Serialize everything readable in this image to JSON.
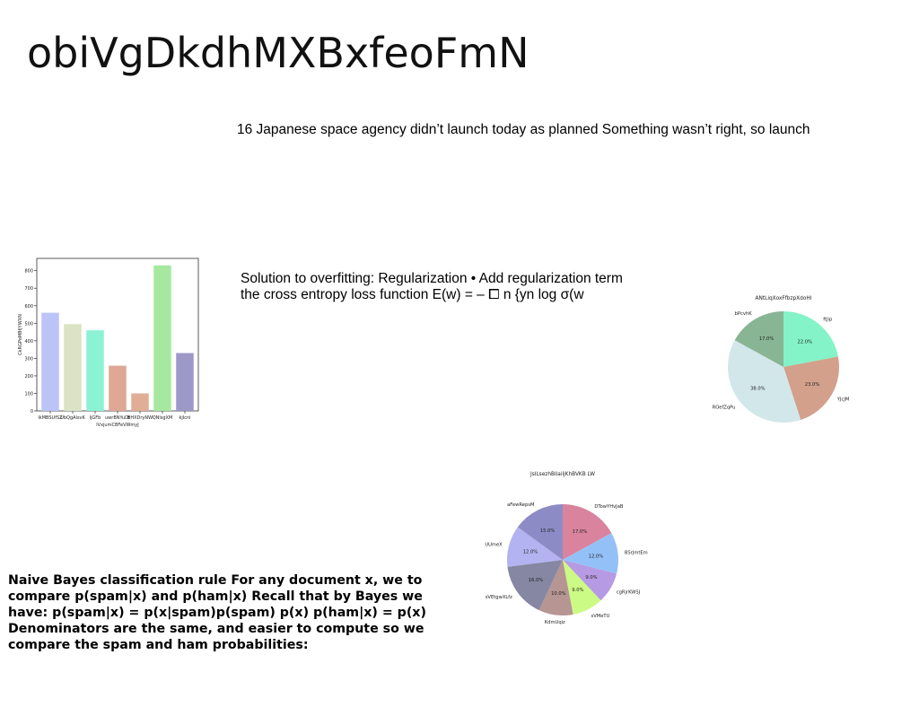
{
  "slide": {
    "title": "obiVgDkdhMXBxfeoFmN",
    "text1": "16 Japanese space agency didn’t launch today as planned Something wasn’t right, so launch",
    "text2_line1": "Solution to overfitting: Regularization • Add regularization term",
    "text2_line2": "the cross entropy loss function E(w) = – ⧠ n {yn log σ(w",
    "text3": "Naive Bayes classification rule For any document x, we to compare p(spam|x) and p(ham|x) Recall that by Bayes we have: p(spam|x) = p(x|spam)p(spam) p(x) p(ham|x) = p(x) Denominators are the same, and easier to compute so we compare the spam and ham probabilities:"
  },
  "chart_data": [
    {
      "type": "bar",
      "title": "",
      "xlabel": "lVxjumCBFeVWmyJ",
      "ylabel": "CkRGPoMBfjYWXN",
      "categories": [
        "lkMBSUfSZ",
        "UbQgAlsvK",
        "ljGFb",
        "uwrBNYuDt",
        "BHXDryNW",
        "QNlsgXM",
        "kjIcni"
      ],
      "values": [
        560,
        495,
        460,
        258,
        100,
        830,
        330
      ],
      "colors": [
        "#bcc4f7",
        "#dbe2c5",
        "#8cf2d4",
        "#dea796",
        "#e0ad96",
        "#a6e8a0",
        "#9c98c8"
      ],
      "ylim": [
        0,
        870
      ],
      "yticks": [
        0,
        100,
        200,
        300,
        400,
        500,
        600,
        700,
        800
      ]
    },
    {
      "type": "pie",
      "title": "ANtLiqXoxFfbzpXdoHI",
      "labels": [
        "ftJip",
        "YJcJM",
        "ROefZqPu",
        "bPcvhK"
      ],
      "values": [
        22.0,
        23.0,
        38.0,
        17.0
      ],
      "colors": [
        "#84f3c8",
        "#d3a08c",
        "#d2e7ea",
        "#88b593"
      ]
    },
    {
      "type": "pie",
      "title": "JsILsezhBIiaiijKhBVKB LW",
      "labels": [
        "DTowYHvJaB",
        "BSrJmtEm",
        "cgRjrKWSJ",
        "sVMeTU",
        "KdmUqiz",
        "sVEtgwXLfz",
        "UUmeX",
        "aFewRepsM"
      ],
      "values": [
        17.0,
        12.0,
        9.0,
        9.0,
        10.0,
        16.0,
        12.0,
        15.0
      ],
      "colors": [
        "#d9839e",
        "#93c1f7",
        "#b69ae3",
        "#cbfa85",
        "#b69593",
        "#8587a3",
        "#b3b3f2",
        "#8d8bc6"
      ]
    }
  ]
}
